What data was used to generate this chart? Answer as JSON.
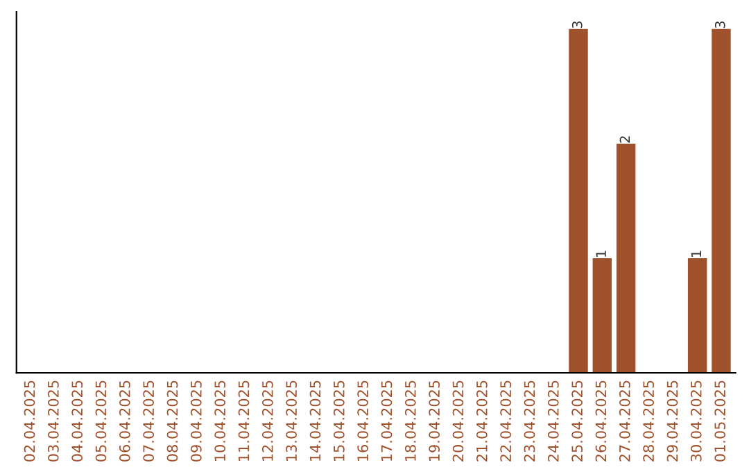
{
  "chart_data": {
    "type": "bar",
    "categories": [
      "02.04.2025",
      "03.04.2025",
      "04.04.2025",
      "05.04.2025",
      "06.04.2025",
      "07.04.2025",
      "08.04.2025",
      "09.04.2025",
      "10.04.2025",
      "11.04.2025",
      "12.04.2025",
      "13.04.2025",
      "14.04.2025",
      "15.04.2025",
      "16.04.2025",
      "17.04.2025",
      "18.04.2025",
      "19.04.2025",
      "20.04.2025",
      "21.04.2025",
      "22.04.2025",
      "23.04.2025",
      "24.04.2025",
      "25.04.2025",
      "26.04.2025",
      "27.04.2025",
      "28.04.2025",
      "29.04.2025",
      "30.04.2025",
      "01.05.2025"
    ],
    "values": [
      null,
      null,
      null,
      null,
      null,
      null,
      null,
      null,
      null,
      null,
      null,
      null,
      null,
      null,
      null,
      null,
      null,
      null,
      null,
      null,
      null,
      null,
      null,
      3,
      1,
      2,
      null,
      null,
      1,
      3
    ],
    "data_labels": true,
    "color": "#a0522d",
    "tick_labels": "x",
    "grid": false,
    "legend": false
  }
}
